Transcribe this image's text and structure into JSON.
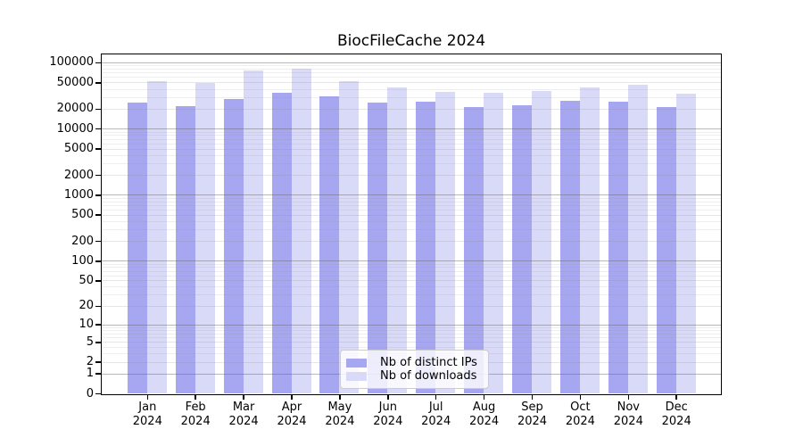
{
  "chart_data": {
    "type": "bar",
    "title": "BiocFileCache 2024",
    "scale": "log1p (y = log10(1+v))",
    "categories": [
      "Jan",
      "Feb",
      "Mar",
      "Apr",
      "May",
      "Jun",
      "Jul",
      "Aug",
      "Sep",
      "Oct",
      "Nov",
      "Dec"
    ],
    "year": "2024",
    "series": [
      {
        "name": "Nb of distinct IPs",
        "color": "#a6a6f1",
        "values": [
          24500,
          22000,
          28000,
          34500,
          31000,
          24500,
          25500,
          21500,
          22500,
          26500,
          25200,
          21500
        ]
      },
      {
        "name": "Nb of downloads",
        "color": "#d9d9f8",
        "values": [
          51500,
          49000,
          76500,
          79500,
          51500,
          42000,
          36000,
          34500,
          37000,
          42000,
          45500,
          33500
        ]
      }
    ],
    "y_ticks": [
      0,
      1,
      2,
      5,
      10,
      20,
      50,
      100,
      200,
      500,
      1000,
      2000,
      5000,
      10000,
      20000,
      50000,
      100000
    ],
    "ylim": [
      0,
      132000
    ],
    "xlabel": "",
    "ylabel": "",
    "grid": "log minor + darker power-of-10 major gridlines, drawn over bars",
    "legend_position": "inside bottom-center",
    "frame_color": "#000000",
    "background_color": "#ffffff"
  }
}
